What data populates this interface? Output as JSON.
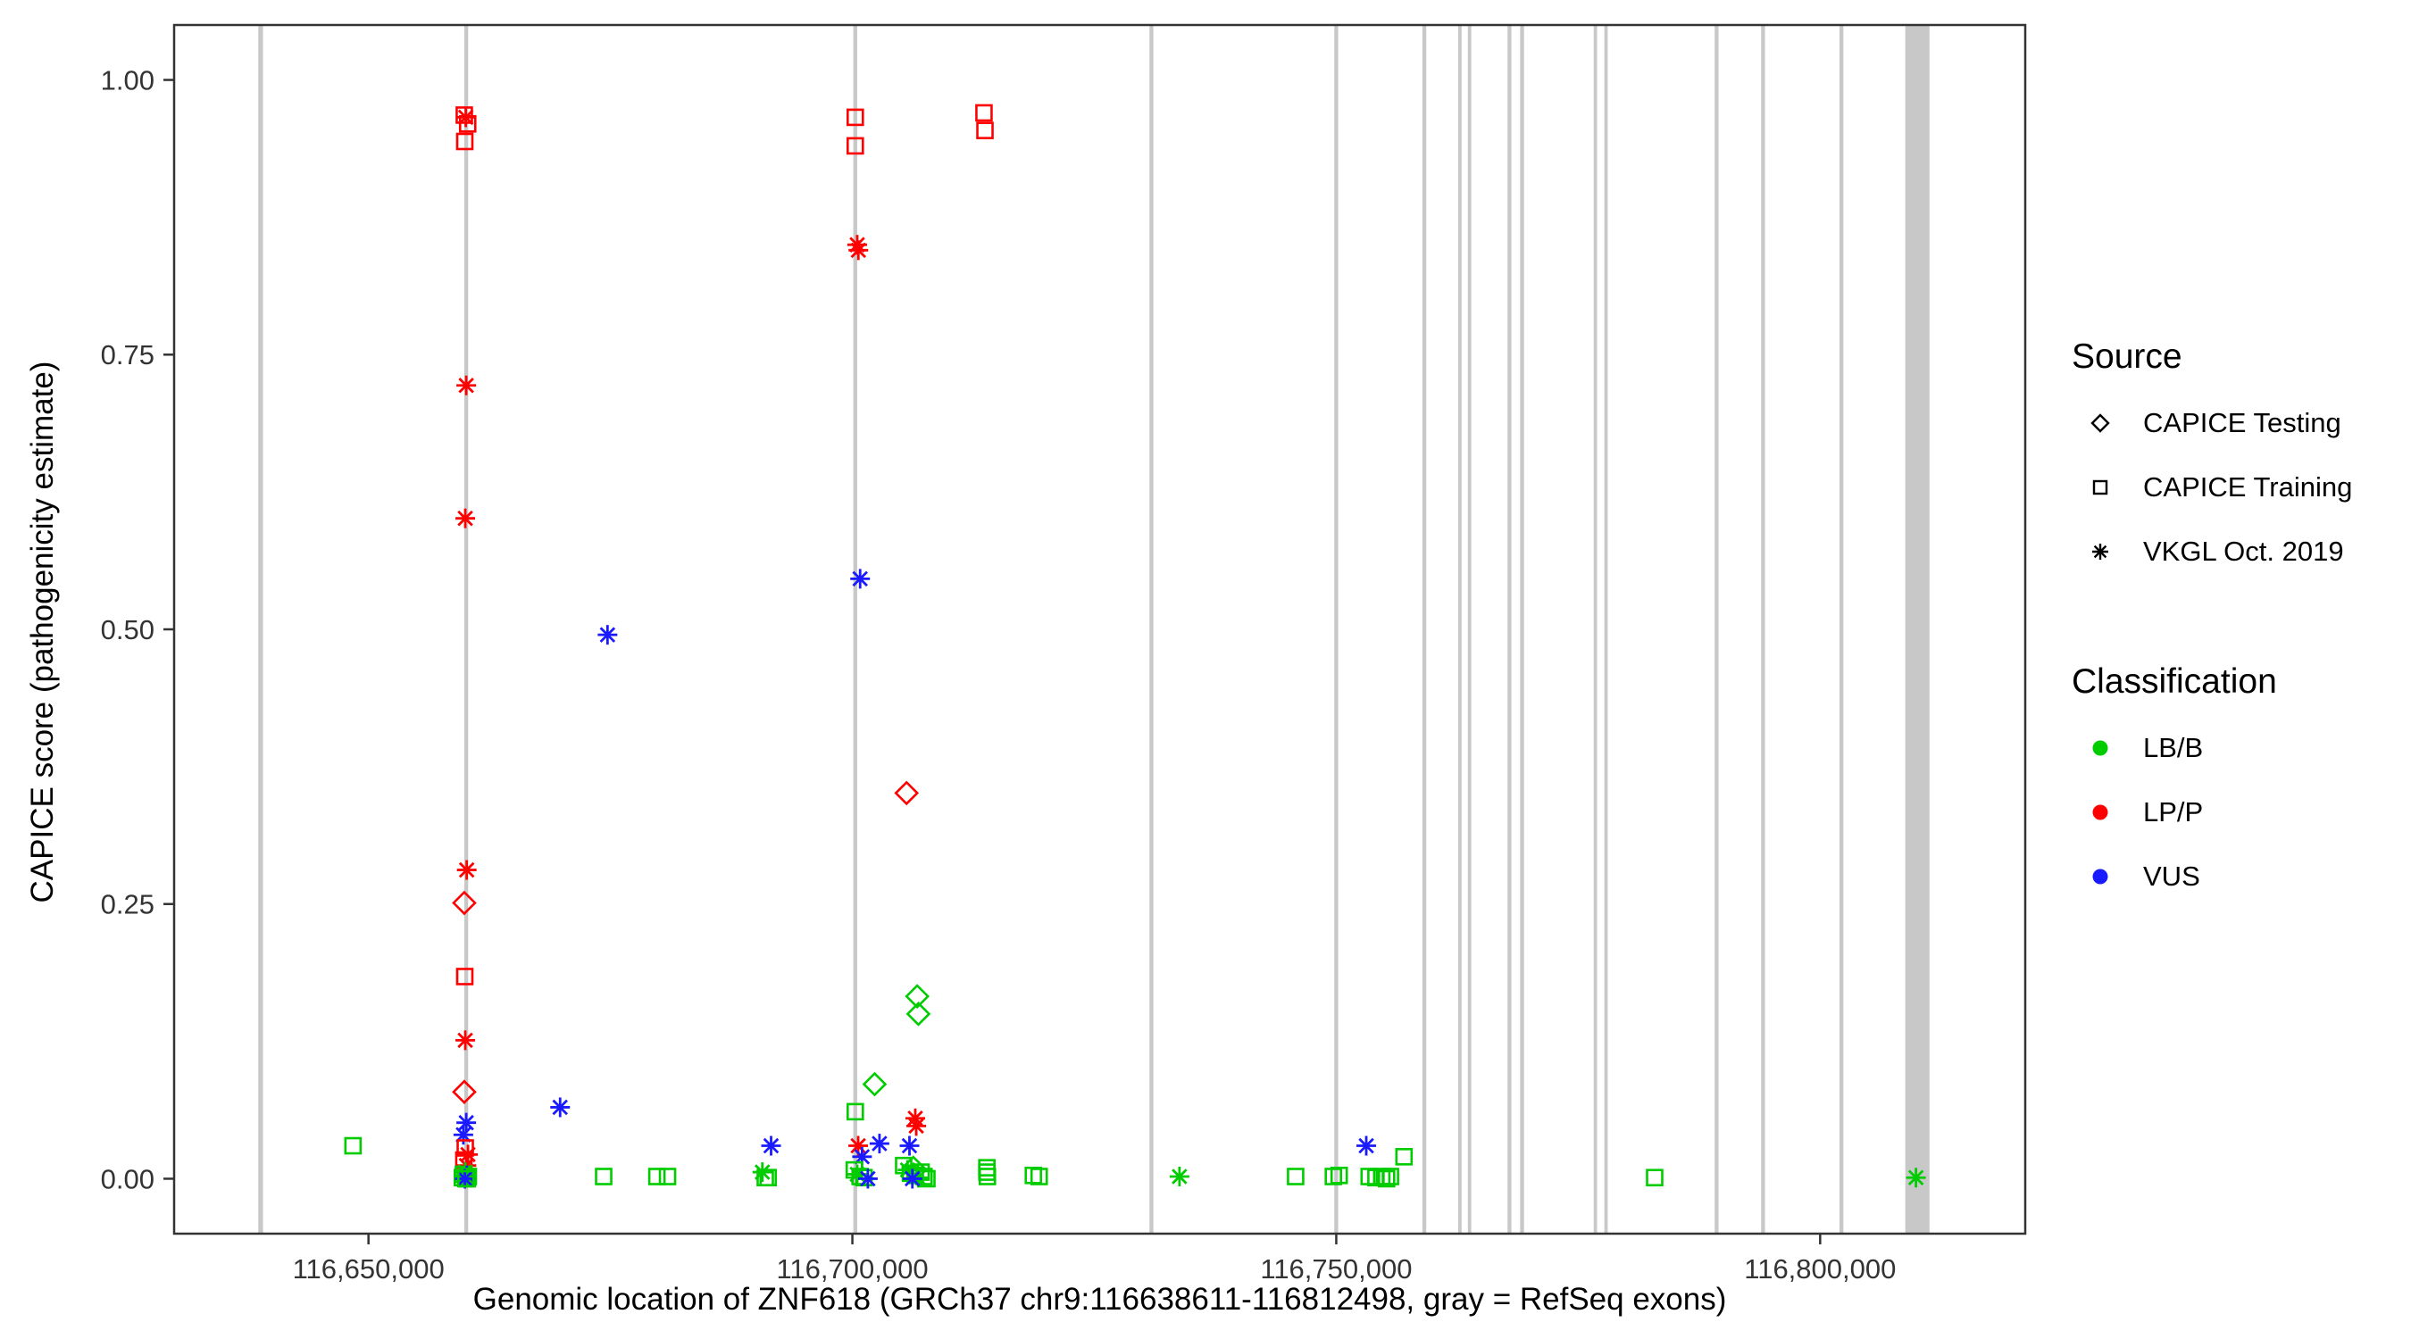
{
  "legend": {
    "source": {
      "title": "Source",
      "items": [
        {
          "label": "CAPICE Testing",
          "shape": "diamond"
        },
        {
          "label": "CAPICE Training",
          "shape": "square"
        },
        {
          "label": "VKGL Oct. 2019",
          "shape": "asterisk"
        }
      ]
    },
    "classification": {
      "title": "Classification",
      "items": [
        {
          "label": "LB/B",
          "color": "#00CC00"
        },
        {
          "label": "LP/P",
          "color": "#FF0000"
        },
        {
          "label": "VUS",
          "color": "#1A1AFF"
        }
      ]
    }
  },
  "chart_data": {
    "type": "scatter",
    "title": "",
    "xlabel": "Genomic location of ZNF618 (GRCh37 chr9:116638611-116812498, gray = RefSeq exons)",
    "ylabel": "CAPICE score (pathogenicity estimate)",
    "x_domain": [
      116638611,
      116812498
    ],
    "y_domain": [
      0,
      1
    ],
    "x_ticks": [
      {
        "value": 116650000,
        "label": "116,650,000"
      },
      {
        "value": 116700000,
        "label": "116,700,000"
      },
      {
        "value": 116750000,
        "label": "116,750,000"
      },
      {
        "value": 116800000,
        "label": "116,800,000"
      }
    ],
    "y_ticks": [
      {
        "value": 0.0,
        "label": "0.00"
      },
      {
        "value": 0.25,
        "label": "0.25"
      },
      {
        "value": 0.5,
        "label": "0.50"
      },
      {
        "value": 0.75,
        "label": "0.75"
      },
      {
        "value": 1.0,
        "label": "1.00"
      }
    ],
    "colors": {
      "LB/B": "#00CC00",
      "LP/P": "#FF0000",
      "VUS": "#1A1AFF"
    },
    "shapes": {
      "CAPICE Testing": "diamond",
      "CAPICE Training": "square",
      "VKGL Oct. 2019": "asterisk"
    },
    "exon_color": "#C8C8C8",
    "exons": [
      [
        116638611,
        116639100
      ],
      [
        116659900,
        116660300
      ],
      [
        116700100,
        116700500
      ],
      [
        116730700,
        116731100
      ],
      [
        116749800,
        116750200
      ],
      [
        116758900,
        116759300
      ],
      [
        116762600,
        116762950
      ],
      [
        116763600,
        116763950
      ],
      [
        116767700,
        116768100
      ],
      [
        116769000,
        116769400
      ],
      [
        116776600,
        116776950
      ],
      [
        116777700,
        116778050
      ],
      [
        116789100,
        116789500
      ],
      [
        116793900,
        116794300
      ],
      [
        116802000,
        116802400
      ],
      [
        116808800,
        116811300
      ]
    ],
    "points": [
      [
        116648400,
        0.03,
        "CAPICE Training",
        "LB/B"
      ],
      [
        116659900,
        0.968,
        "CAPICE Training",
        "LP/P"
      ],
      [
        116660250,
        0.96,
        "CAPICE Training",
        "LP/P"
      ],
      [
        116660050,
        0.966,
        "VKGL Oct. 2019",
        "LP/P"
      ],
      [
        116659950,
        0.944,
        "CAPICE Training",
        "LP/P"
      ],
      [
        116660100,
        0.722,
        "VKGL Oct. 2019",
        "LP/P"
      ],
      [
        116660000,
        0.601,
        "VKGL Oct. 2019",
        "LP/P"
      ],
      [
        116660150,
        0.281,
        "VKGL Oct. 2019",
        "LP/P"
      ],
      [
        116659900,
        0.251,
        "CAPICE Testing",
        "LP/P"
      ],
      [
        116659950,
        0.184,
        "CAPICE Training",
        "LP/P"
      ],
      [
        116660000,
        0.126,
        "VKGL Oct. 2019",
        "LP/P"
      ],
      [
        116659900,
        0.079,
        "CAPICE Testing",
        "LP/P"
      ],
      [
        116660100,
        0.051,
        "VKGL Oct. 2019",
        "VUS"
      ],
      [
        116659800,
        0.04,
        "VKGL Oct. 2019",
        "VUS"
      ],
      [
        116660000,
        0.028,
        "CAPICE Training",
        "LP/P"
      ],
      [
        116660280,
        0.022,
        "VKGL Oct. 2019",
        "LP/P"
      ],
      [
        116659850,
        0.017,
        "CAPICE Training",
        "LP/P"
      ],
      [
        116660120,
        0.012,
        "VKGL Oct. 2019",
        "LP/P"
      ],
      [
        116659800,
        0.004,
        "CAPICE Training",
        "LB/B"
      ],
      [
        116660000,
        0.006,
        "VKGL Oct. 2019",
        "LB/B"
      ],
      [
        116660160,
        0.003,
        "VKGL Oct. 2019",
        "VUS"
      ],
      [
        116659900,
        0.002,
        "VKGL Oct. 2019",
        "LB/B"
      ],
      [
        116660320,
        0.002,
        "CAPICE Training",
        "LB/B"
      ],
      [
        116659700,
        0.001,
        "CAPICE Training",
        "LB/B"
      ],
      [
        116660080,
        0.001,
        "VKGL Oct. 2019",
        "LB/B"
      ],
      [
        116660220,
        0.0,
        "CAPICE Training",
        "LB/B"
      ],
      [
        116659960,
        0.0,
        "VKGL Oct. 2019",
        "VUS"
      ],
      [
        116660060,
        0.0,
        "CAPICE Training",
        "LB/B"
      ],
      [
        116669800,
        0.065,
        "VKGL Oct. 2019",
        "VUS"
      ],
      [
        116674700,
        0.495,
        "VKGL Oct. 2019",
        "VUS"
      ],
      [
        116674300,
        0.002,
        "CAPICE Training",
        "LB/B"
      ],
      [
        116679800,
        0.002,
        "CAPICE Training",
        "LB/B"
      ],
      [
        116680900,
        0.002,
        "CAPICE Training",
        "LB/B"
      ],
      [
        116690700,
        0.006,
        "VKGL Oct. 2019",
        "LB/B"
      ],
      [
        116691000,
        0.001,
        "CAPICE Training",
        "LB/B"
      ],
      [
        116691600,
        0.03,
        "VKGL Oct. 2019",
        "VUS"
      ],
      [
        116691300,
        0.001,
        "CAPICE Training",
        "LB/B"
      ],
      [
        116700300,
        0.966,
        "CAPICE Training",
        "LP/P"
      ],
      [
        116700300,
        0.94,
        "CAPICE Training",
        "LP/P"
      ],
      [
        116700500,
        0.85,
        "VKGL Oct. 2019",
        "LP/P"
      ],
      [
        116700620,
        0.845,
        "VKGL Oct. 2019",
        "LP/P"
      ],
      [
        116700800,
        0.546,
        "VKGL Oct. 2019",
        "VUS"
      ],
      [
        116705600,
        0.351,
        "CAPICE Testing",
        "LP/P"
      ],
      [
        116706700,
        0.166,
        "CAPICE Testing",
        "LB/B"
      ],
      [
        116706820,
        0.15,
        "CAPICE Testing",
        "LB/B"
      ],
      [
        116702300,
        0.086,
        "CAPICE Testing",
        "LB/B"
      ],
      [
        116700300,
        0.061,
        "CAPICE Training",
        "LB/B"
      ],
      [
        116706500,
        0.055,
        "VKGL Oct. 2019",
        "LP/P"
      ],
      [
        116706600,
        0.048,
        "VKGL Oct. 2019",
        "LP/P"
      ],
      [
        116700600,
        0.03,
        "VKGL Oct. 2019",
        "LP/P"
      ],
      [
        116702800,
        0.032,
        "VKGL Oct. 2019",
        "VUS"
      ],
      [
        116705900,
        0.03,
        "VKGL Oct. 2019",
        "VUS"
      ],
      [
        116701000,
        0.02,
        "VKGL Oct. 2019",
        "VUS"
      ],
      [
        116700200,
        0.008,
        "CAPICE Training",
        "LB/B"
      ],
      [
        116700500,
        0.004,
        "VKGL Oct. 2019",
        "LB/B"
      ],
      [
        116700800,
        0.002,
        "CAPICE Training",
        "LB/B"
      ],
      [
        116701200,
        0.001,
        "CAPICE Training",
        "LB/B"
      ],
      [
        116701600,
        0.0,
        "VKGL Oct. 2019",
        "VUS"
      ],
      [
        116705300,
        0.012,
        "CAPICE Training",
        "LB/B"
      ],
      [
        116705700,
        0.008,
        "VKGL Oct. 2019",
        "LB/B"
      ],
      [
        116706000,
        0.005,
        "CAPICE Training",
        "LB/B"
      ],
      [
        116706300,
        0.01,
        "CAPICE Testing",
        "LB/B"
      ],
      [
        116706500,
        0.003,
        "CAPICE Training",
        "LB/B"
      ],
      [
        116706800,
        0.001,
        "VKGL Oct. 2019",
        "LB/B"
      ],
      [
        116707100,
        0.006,
        "CAPICE Training",
        "LB/B"
      ],
      [
        116707400,
        0.002,
        "CAPICE Training",
        "LB/B"
      ],
      [
        116707700,
        0.0,
        "CAPICE Training",
        "LB/B"
      ],
      [
        116706200,
        0.0,
        "VKGL Oct. 2019",
        "VUS"
      ],
      [
        116713600,
        0.97,
        "CAPICE Training",
        "LP/P"
      ],
      [
        116713700,
        0.954,
        "CAPICE Training",
        "LP/P"
      ],
      [
        116713900,
        0.01,
        "CAPICE Training",
        "LB/B"
      ],
      [
        116713900,
        0.006,
        "CAPICE Training",
        "LB/B"
      ],
      [
        116713950,
        0.002,
        "CAPICE Training",
        "LB/B"
      ],
      [
        116718700,
        0.003,
        "CAPICE Training",
        "LB/B"
      ],
      [
        116719300,
        0.002,
        "CAPICE Training",
        "LB/B"
      ],
      [
        116733800,
        0.002,
        "VKGL Oct. 2019",
        "LB/B"
      ],
      [
        116745800,
        0.002,
        "CAPICE Training",
        "LB/B"
      ],
      [
        116749700,
        0.002,
        "CAPICE Training",
        "LB/B"
      ],
      [
        116750300,
        0.003,
        "CAPICE Training",
        "LB/B"
      ],
      [
        116753100,
        0.03,
        "VKGL Oct. 2019",
        "VUS"
      ],
      [
        116753400,
        0.002,
        "CAPICE Training",
        "LB/B"
      ],
      [
        116754100,
        0.001,
        "CAPICE Training",
        "LB/B"
      ],
      [
        116754700,
        0.002,
        "CAPICE Training",
        "LB/B"
      ],
      [
        116755200,
        0.0,
        "CAPICE Training",
        "LB/B"
      ],
      [
        116755600,
        0.002,
        "CAPICE Training",
        "LB/B"
      ],
      [
        116757000,
        0.02,
        "CAPICE Training",
        "LB/B"
      ],
      [
        116782900,
        0.001,
        "CAPICE Training",
        "LB/B"
      ],
      [
        116809900,
        0.001,
        "VKGL Oct. 2019",
        "LB/B"
      ]
    ]
  }
}
